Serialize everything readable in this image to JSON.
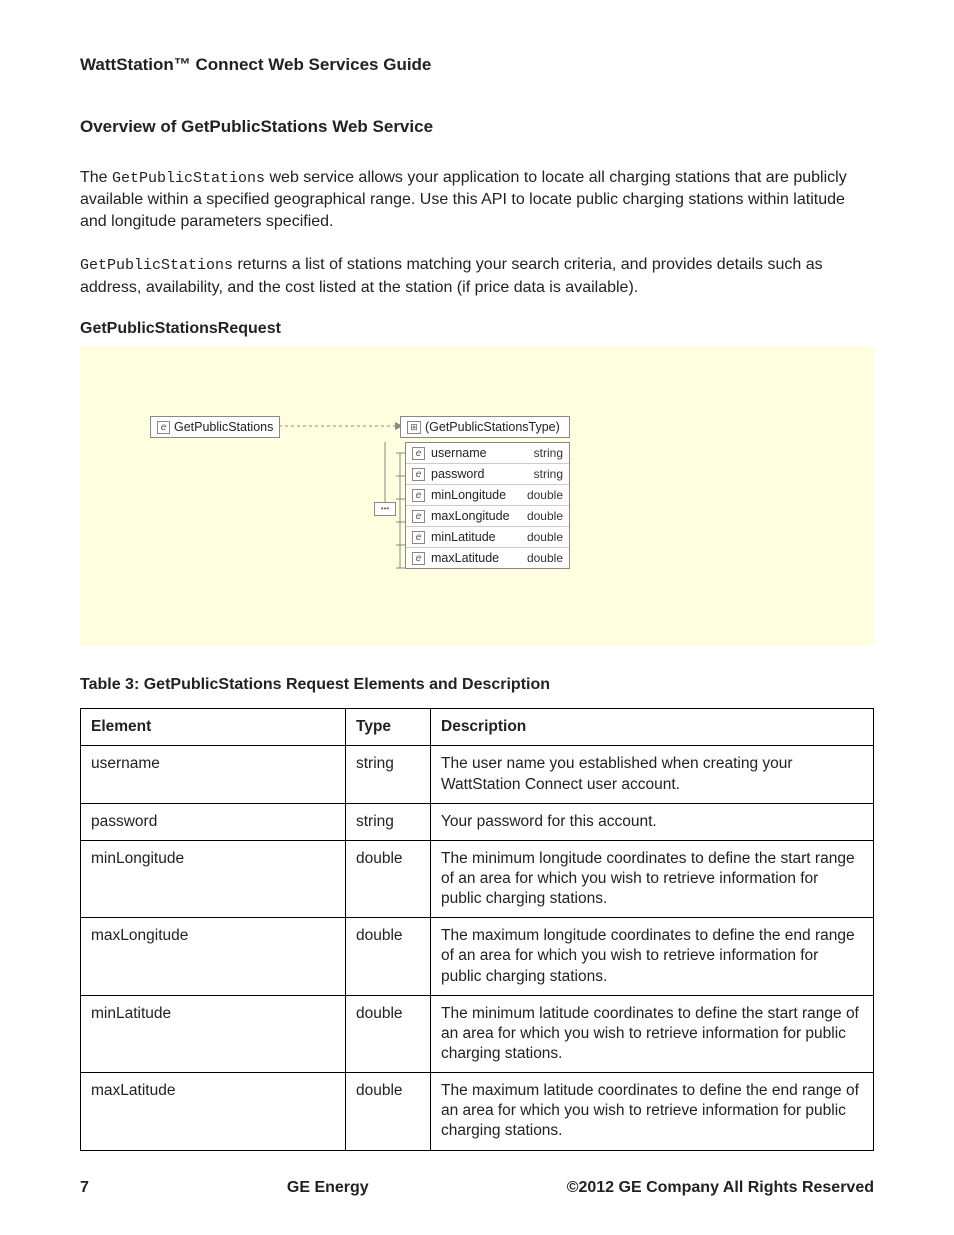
{
  "doc_title": "WattStation™ Connect Web Services Guide",
  "section_title": "Overview of GetPublicStations Web Service",
  "para1_pre": "The ",
  "para1_code": "GetPublicStations",
  "para1_post": " web service allows your application to locate all charging stations that are publicly available within a specified geographical range. Use this API to locate public charging stations within latitude and longitude parameters specified.",
  "para2_code": "GetPublicStations",
  "para2_post": " returns a list of stations matching your search criteria, and provides details such as address, availability, and the cost listed at the station (if price data is available).",
  "request_title": "GetPublicStationsRequest",
  "schema": {
    "root_label": "GetPublicStations",
    "type_label": "(GetPublicStationsType)",
    "fields": [
      {
        "name": "username",
        "type": "string"
      },
      {
        "name": "password",
        "type": "string"
      },
      {
        "name": "minLongitude",
        "type": "double"
      },
      {
        "name": "maxLongitude",
        "type": "double"
      },
      {
        "name": "minLatitude",
        "type": "double"
      },
      {
        "name": "maxLatitude",
        "type": "double"
      }
    ]
  },
  "table_caption": "Table 3: GetPublicStations Request Elements and Description",
  "table": {
    "headers": [
      "Element",
      "Type",
      "Description"
    ],
    "rows": [
      [
        "username",
        "string",
        "The user name you established when creating your WattStation Connect user account."
      ],
      [
        "password",
        "string",
        "Your password for this account."
      ],
      [
        "minLongitude",
        "double",
        "The minimum longitude coordinates to define the start range of an area for which you wish to retrieve information for public charging stations."
      ],
      [
        "maxLongitude",
        "double",
        "The maximum longitude coordinates to define the end range of an area for which you wish to retrieve information for public charging stations."
      ],
      [
        "minLatitude",
        "double",
        "The minimum latitude coordinates to define the start range of an area for which you wish to retrieve information for public charging stations."
      ],
      [
        "maxLatitude",
        "double",
        "The maximum latitude coordinates to define the end range of an area for which you wish to retrieve information for public charging stations."
      ]
    ]
  },
  "footer": {
    "page": "7",
    "center": "GE Energy",
    "right": "©2012 GE Company All Rights Reserved"
  },
  "colors": {
    "diagram_bg": "#ffffe0",
    "border": "#000000",
    "text": "#222222"
  }
}
